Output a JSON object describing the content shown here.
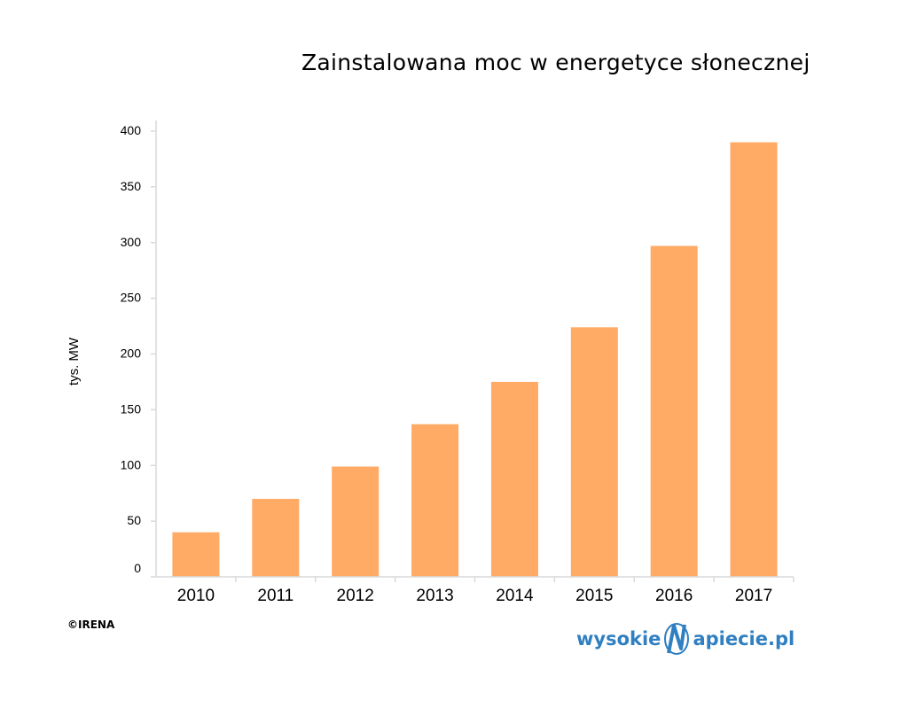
{
  "chart_data": {
    "type": "bar",
    "title": "Zainstalowana moc w energetyce słonecznej",
    "ylabel": "tys. MW",
    "xlabel": "",
    "categories": [
      "2010",
      "2011",
      "2012",
      "2013",
      "2014",
      "2015",
      "2016",
      "2017"
    ],
    "values": [
      40,
      70,
      99,
      137,
      175,
      224,
      297,
      390
    ],
    "ylim": [
      0,
      400
    ],
    "yticks": [
      0,
      50,
      100,
      150,
      200,
      250,
      300,
      350,
      400
    ],
    "bar_color": "#FFAB66",
    "axis_color": "#D9D9D9",
    "grid": false,
    "legend": "none"
  },
  "source": "©IRENA",
  "logo": {
    "left": "wysokie",
    "mark": "N",
    "right": "apiecie.pl",
    "color": "#2F7FC1"
  }
}
